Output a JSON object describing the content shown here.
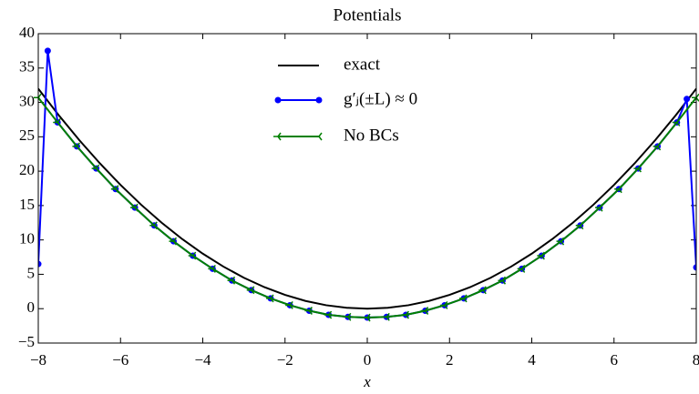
{
  "chart_data": {
    "type": "line",
    "title": "Potentials",
    "x_label": "x",
    "xlim": [
      -8,
      8
    ],
    "ylim": [
      -5,
      40
    ],
    "xticks": [
      {
        "value": -8,
        "label": "−8"
      },
      {
        "value": -6,
        "label": "−6"
      },
      {
        "value": -4,
        "label": "−4"
      },
      {
        "value": -2,
        "label": "−2"
      },
      0,
      2,
      4,
      6,
      8
    ],
    "yticks": [
      {
        "value": -5,
        "label": "−5"
      },
      0,
      5,
      10,
      15,
      20,
      25,
      30,
      35,
      40
    ],
    "legend": "upper center",
    "series": [
      {
        "name": "exact",
        "color": "#000000",
        "marker": "none",
        "x": [
          -8,
          -7.5,
          -7,
          -6.5,
          -6,
          -5.5,
          -5,
          -4.5,
          -4,
          -3.5,
          -3,
          -2.5,
          -2,
          -1.5,
          -1,
          -0.5,
          0,
          0.5,
          1,
          1.5,
          2,
          2.5,
          3,
          3.5,
          4,
          4.5,
          5,
          5.5,
          6,
          6.5,
          7,
          7.5,
          8
        ],
        "values": [
          32,
          28.125,
          24.5,
          21.125,
          18,
          15.125,
          12.5,
          10.125,
          8,
          6.125,
          4.5,
          3.125,
          2,
          1.125,
          0.5,
          0.125,
          0,
          0.125,
          0.5,
          1.125,
          2,
          3.125,
          4.5,
          6.125,
          8,
          10.125,
          12.5,
          15.125,
          18,
          21.125,
          24.5,
          28.125,
          32
        ]
      },
      {
        "name": "g′ⱼ(±L) ≈ 0",
        "color": "#0000ff",
        "marker": "circle",
        "x": [
          -8,
          -7.77,
          -7.53,
          -7.06,
          -6.59,
          -6.12,
          -5.65,
          -5.18,
          -4.71,
          -4.24,
          -3.76,
          -3.29,
          -2.82,
          -2.35,
          -1.88,
          -1.41,
          -0.94,
          -0.47,
          0,
          0.47,
          0.94,
          1.41,
          1.88,
          2.35,
          2.82,
          3.29,
          3.76,
          4.24,
          4.71,
          5.18,
          5.65,
          6.12,
          6.59,
          7.06,
          7.53,
          7.77,
          8
        ],
        "values": [
          6.5,
          37.5,
          27.1,
          23.6,
          20.4,
          17.4,
          14.7,
          12.1,
          9.8,
          7.7,
          5.8,
          4.1,
          2.7,
          1.5,
          0.5,
          -0.3,
          -0.9,
          -1.2,
          -1.3,
          -1.2,
          -0.9,
          -0.3,
          0.5,
          1.5,
          2.7,
          4.1,
          5.8,
          7.7,
          9.8,
          12.1,
          14.7,
          17.4,
          20.4,
          23.6,
          27.1,
          30.5,
          6
        ]
      },
      {
        "name": "No BCs",
        "color": "#008000",
        "marker": "tri_left",
        "x": [
          -8,
          -7.53,
          -7.06,
          -6.59,
          -6.12,
          -5.65,
          -5.18,
          -4.71,
          -4.24,
          -3.76,
          -3.29,
          -2.82,
          -2.35,
          -1.88,
          -1.41,
          -0.94,
          -0.47,
          0,
          0.47,
          0.94,
          1.41,
          1.88,
          2.35,
          2.82,
          3.29,
          3.76,
          4.24,
          4.71,
          5.18,
          5.65,
          6.12,
          6.59,
          7.06,
          7.53,
          8
        ],
        "values": [
          30.7,
          27.1,
          23.6,
          20.4,
          17.4,
          14.7,
          12.1,
          9.8,
          7.7,
          5.8,
          4.1,
          2.7,
          1.5,
          0.5,
          -0.3,
          -0.9,
          -1.2,
          -1.3,
          -1.2,
          -0.9,
          -0.3,
          0.5,
          1.5,
          2.7,
          4.1,
          5.8,
          7.7,
          9.8,
          12.1,
          14.7,
          17.4,
          20.4,
          23.6,
          27.1,
          30.7
        ]
      }
    ]
  }
}
